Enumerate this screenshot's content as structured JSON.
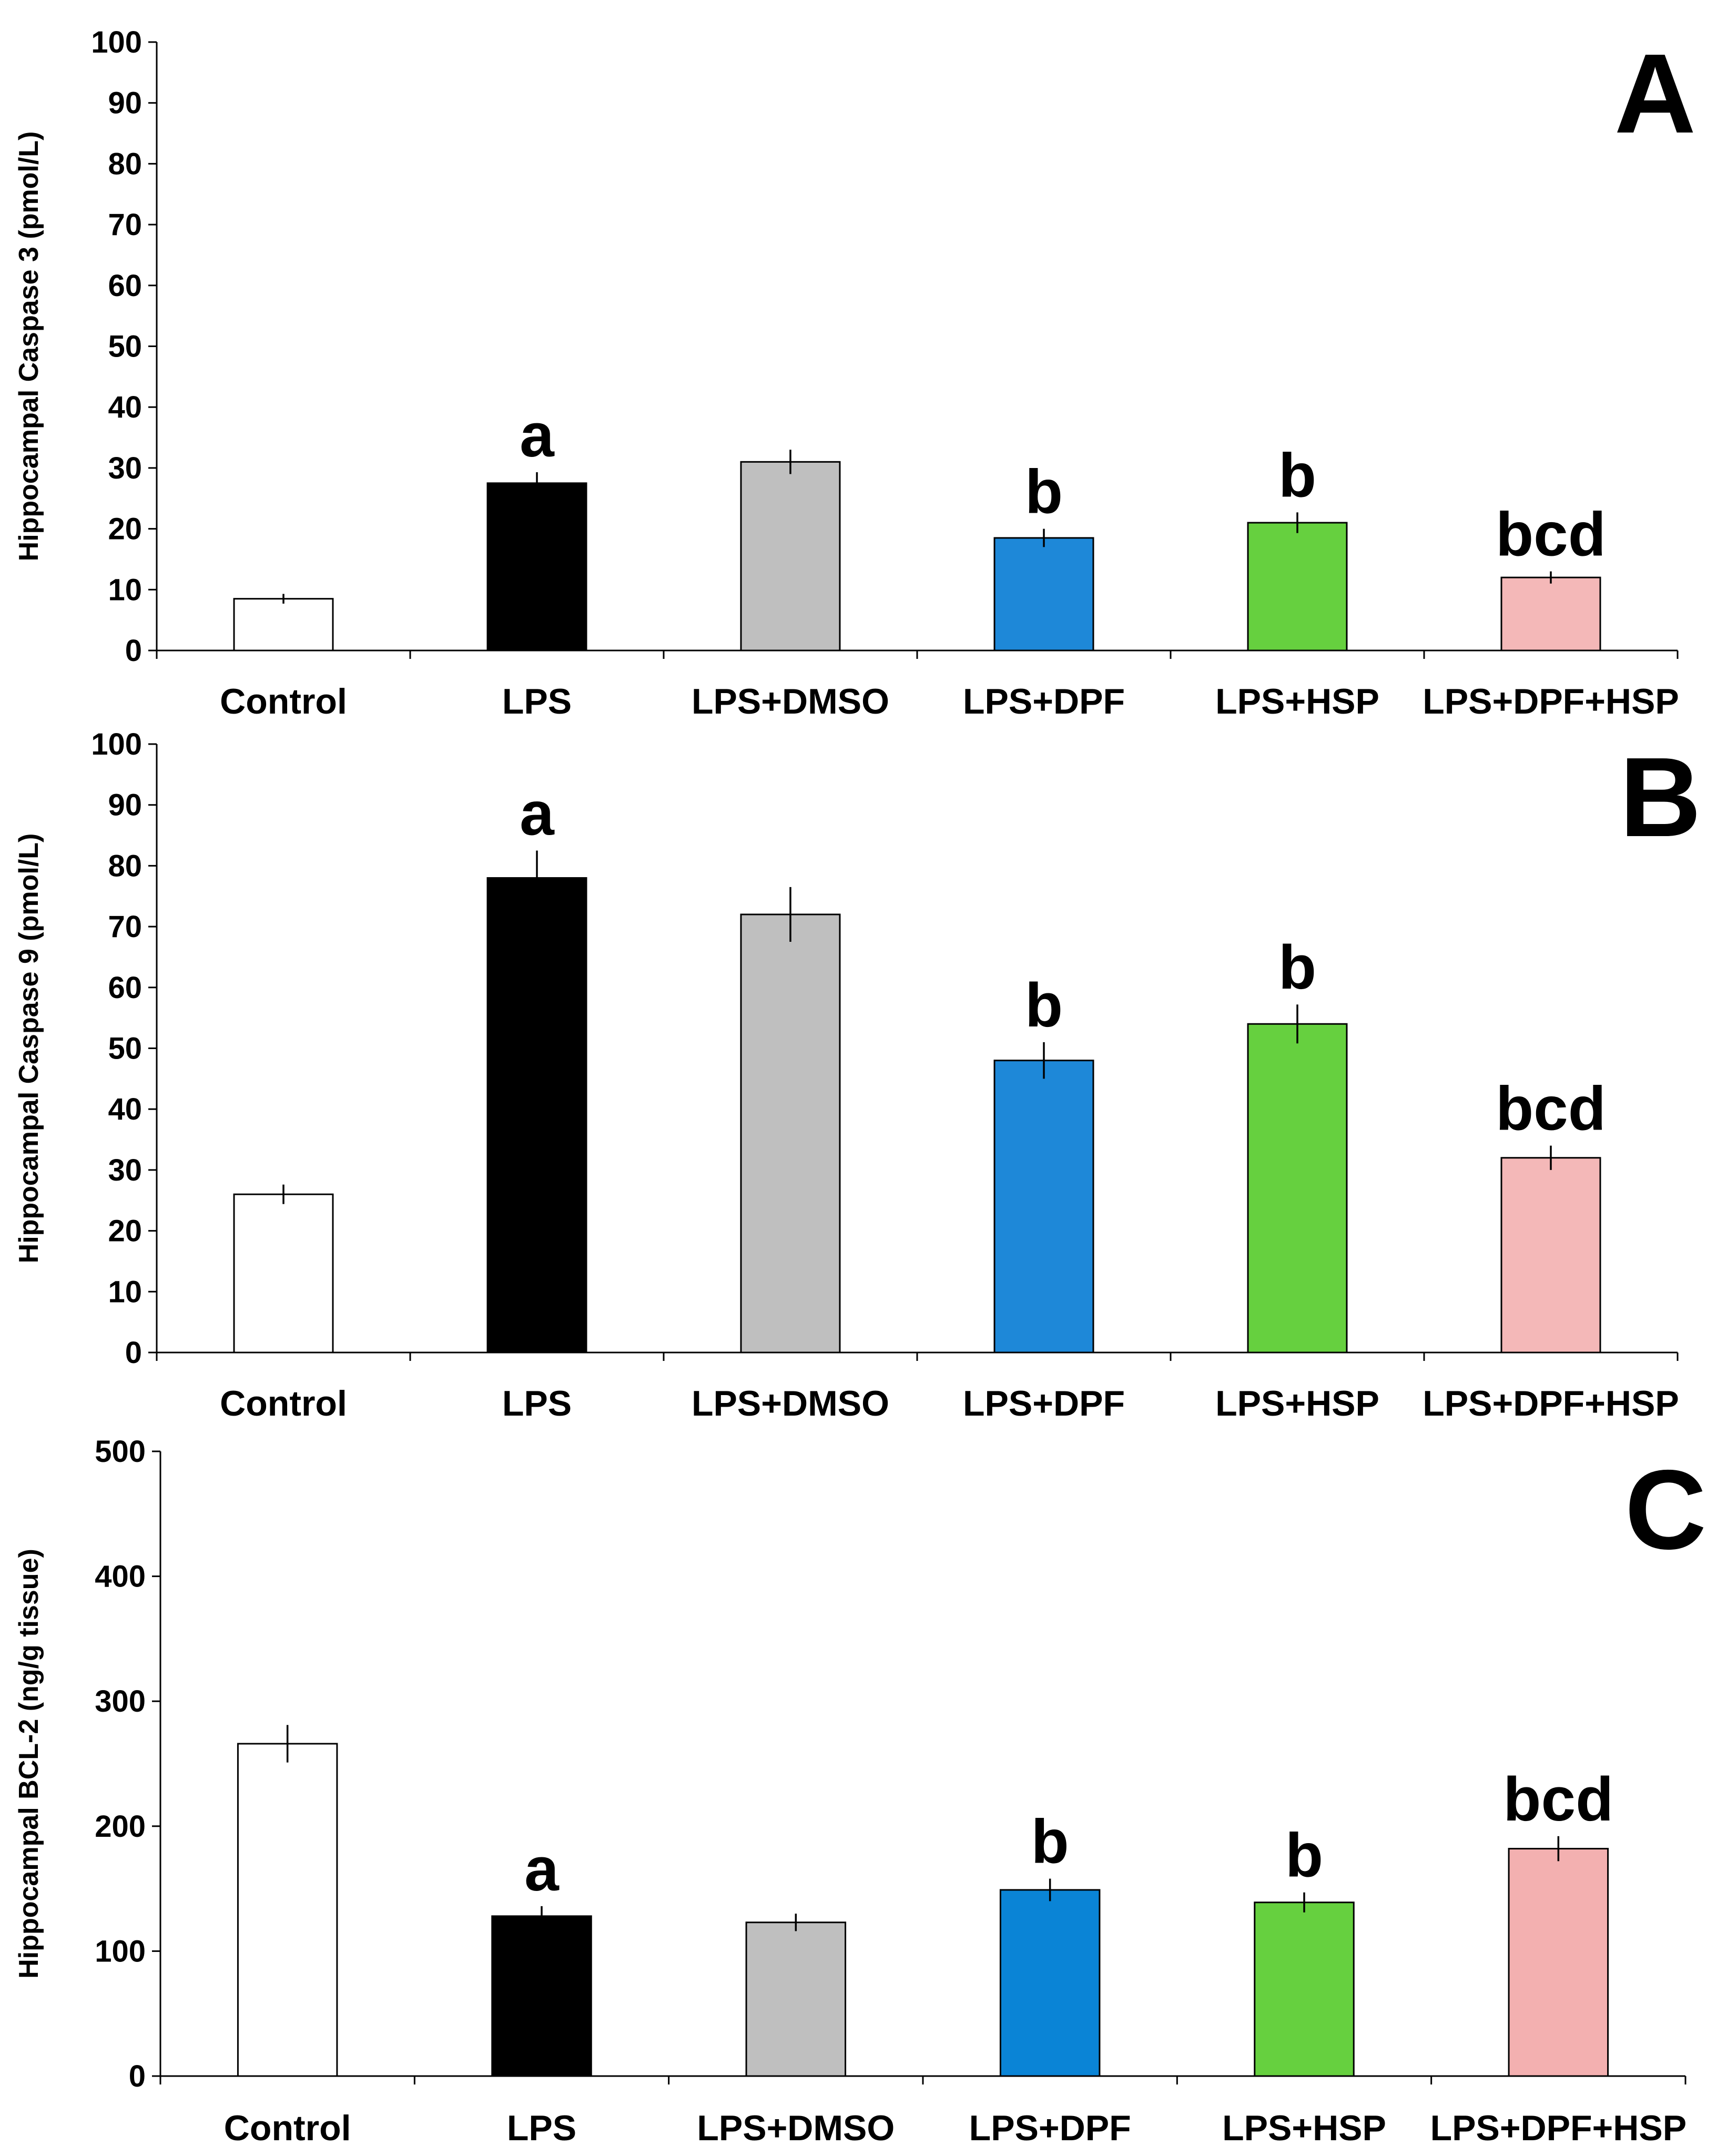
{
  "chart_data": [
    {
      "panel": "A",
      "type": "bar",
      "title": "",
      "xlabel": "",
      "ylabel": "Hippocampal Caspase 3 (pmol/L)",
      "ylim": [
        0,
        100
      ],
      "yticks": [
        0,
        10,
        20,
        30,
        40,
        50,
        60,
        70,
        80,
        90,
        100
      ],
      "categories": [
        "Control",
        "LPS",
        "LPS+DMSO",
        "LPS+DPF",
        "LPS+HSP",
        "LPS+DPF+HSP"
      ],
      "values": [
        8.5,
        27.5,
        31,
        18.5,
        21,
        12
      ],
      "errors": [
        0.8,
        1.8,
        2,
        1.5,
        1.7,
        1
      ],
      "significance": [
        "",
        "a",
        "",
        "b",
        "b",
        "bcd"
      ],
      "colors": [
        "#ffffff",
        "#000000",
        "#bfbfbf",
        "#1e88d8",
        "#66d03f",
        "#f4b8b8"
      ]
    },
    {
      "panel": "B",
      "type": "bar",
      "title": "",
      "xlabel": "",
      "ylabel": "Hippocampal Caspase 9 (pmol/L)",
      "ylim": [
        0,
        100
      ],
      "yticks": [
        0,
        10,
        20,
        30,
        40,
        50,
        60,
        70,
        80,
        90,
        100
      ],
      "categories": [
        "Control",
        "LPS",
        "LPS+DMSO",
        "LPS+DPF",
        "LPS+HSP",
        "LPS+DPF+HSP"
      ],
      "values": [
        26,
        78,
        72,
        48,
        54,
        32
      ],
      "errors": [
        1.6,
        4.5,
        4.5,
        3,
        3.2,
        2
      ],
      "significance": [
        "",
        "a",
        "",
        "b",
        "b",
        "bcd"
      ],
      "colors": [
        "#ffffff",
        "#000000",
        "#bfbfbf",
        "#1e88d8",
        "#66d03f",
        "#f4b8b8"
      ]
    },
    {
      "panel": "C",
      "type": "bar",
      "title": "",
      "xlabel": "",
      "ylabel": "Hippocampal BCL-2 (ng/g tissue)",
      "ylim": [
        0,
        500
      ],
      "yticks": [
        0,
        100,
        200,
        300,
        400,
        500
      ],
      "categories": [
        "Control",
        "LPS",
        "LPS+DMSO",
        "LPS+DPF",
        "LPS+HSP",
        "LPS+DPF+HSP"
      ],
      "values": [
        266,
        128,
        123,
        149,
        139,
        182
      ],
      "errors": [
        15,
        8,
        7,
        9,
        8,
        10
      ],
      "significance": [
        "",
        "a",
        "",
        "b",
        "b",
        "bcd"
      ],
      "colors": [
        "#ffffff",
        "#000000",
        "#bfbfbf",
        "#0a84d6",
        "#66d03f",
        "#f3b0b0"
      ]
    }
  ]
}
